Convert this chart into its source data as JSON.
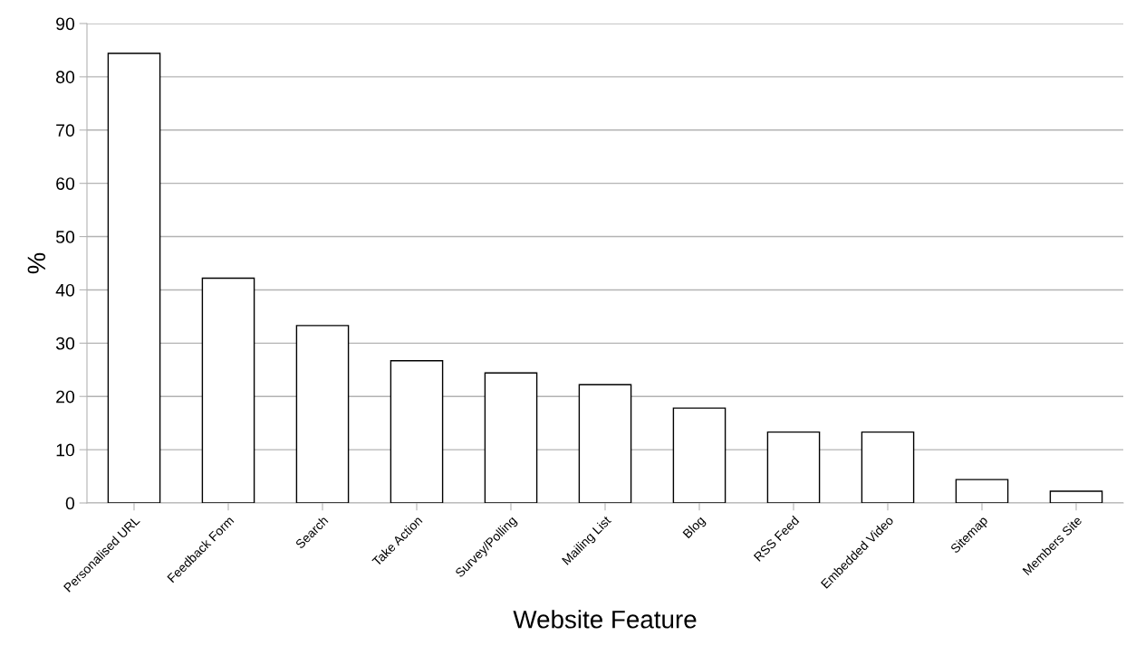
{
  "chart_data": {
    "type": "bar",
    "xlabel": "Website Feature",
    "ylabel": "%",
    "categories": [
      "Personalised URL",
      "Feedback Form",
      "Search",
      "Take Action",
      "Survey/Polling",
      "Mailing List",
      "Blog",
      "RSS Feed",
      "Embedded Video",
      "Sitemap",
      "Members Site"
    ],
    "values": [
      84.4,
      42.2,
      33.3,
      26.7,
      24.4,
      22.2,
      17.8,
      13.3,
      13.3,
      4.4,
      2.2
    ],
    "color": "#ffffff",
    "ylim": [
      0,
      90
    ],
    "yticks": [
      0,
      10,
      20,
      30,
      40,
      50,
      60,
      70,
      80,
      90
    ],
    "grid": "y"
  }
}
